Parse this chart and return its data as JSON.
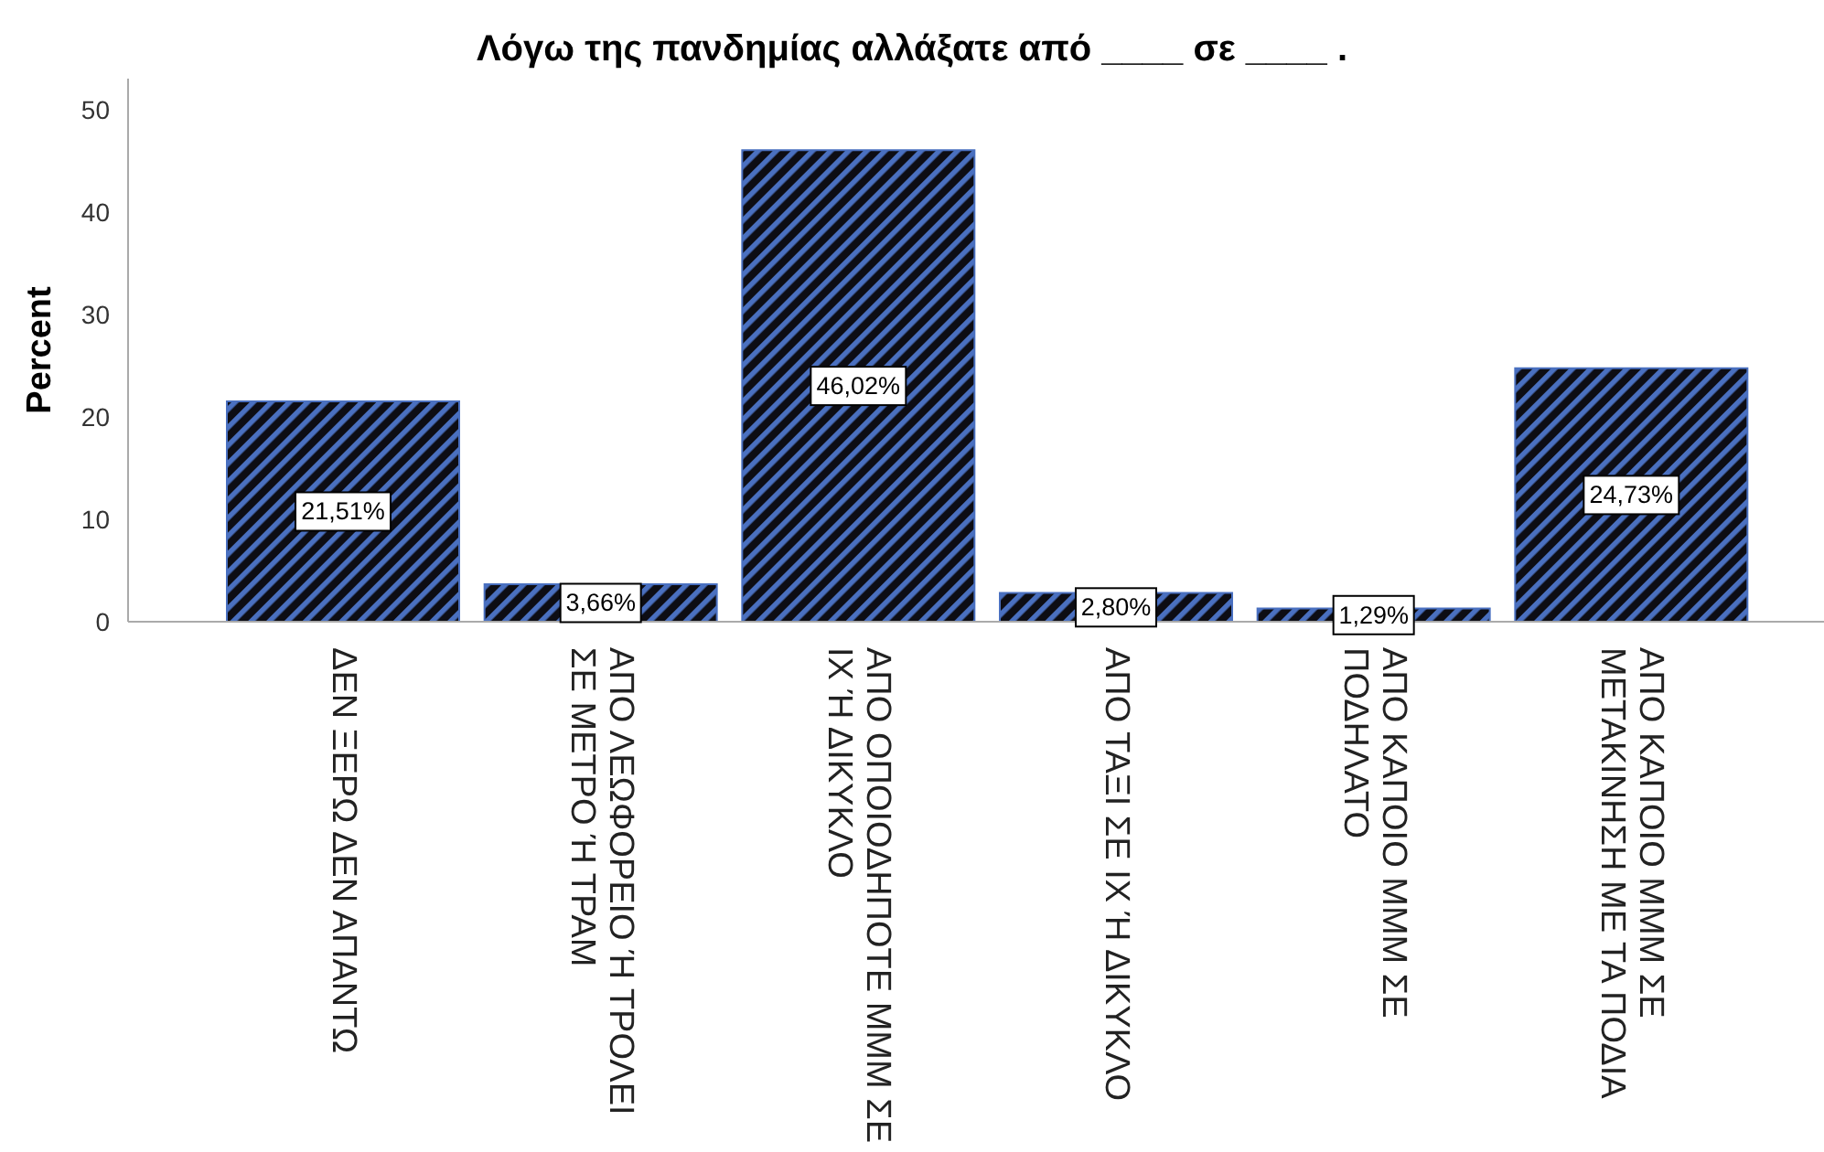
{
  "chart_data": {
    "type": "bar",
    "title": "Λόγω της πανδημίας αλλάξατε από ____ σε ____ .",
    "ylabel": "Percent",
    "categories": [
      "ΔΕΝ ΞΕΡΩ ΔΕΝ ΑΠΑΝΤΩ",
      "ΑΠΟ ΛΕΩΦΟΡΕΙΟ Ή ΤΡΟΛΕΙ ΣΕ ΜΕΤΡΟ Ή ΤΡΑΜ",
      "ΑΠΟ ΟΠΟΙΟΔΗΠΟΤΕ ΜΜΜ ΣΕ ΙΧ Ή ΔΙΚΥΚΛΟ",
      "ΑΠΟ ΤΑΞΙ ΣΕ ΙΧ Ή ΔΙΚΥΚΛΟ",
      "ΑΠΟ ΚΑΠΟΙΟ ΜΜΜ ΣΕ ΠΟΔΗΛΑΤΟ",
      "ΑΠΟ ΚΑΠΟΙΟ ΜΜΜ ΣΕ ΜΕΤΑΚΙΝΗΣΗ ΜΕ ΤΑ ΠΟΔΙΑ"
    ],
    "values": [
      21.51,
      3.66,
      46.02,
      2.8,
      1.29,
      24.73
    ],
    "value_labels": [
      "21,51%",
      "3,66%",
      "46,02%",
      "2,80%",
      "1,29%",
      "24,73%"
    ],
    "color": "#4a70c0",
    "ylim": [
      0,
      53
    ],
    "yticks": [
      0,
      10,
      20,
      30,
      40,
      50
    ]
  }
}
